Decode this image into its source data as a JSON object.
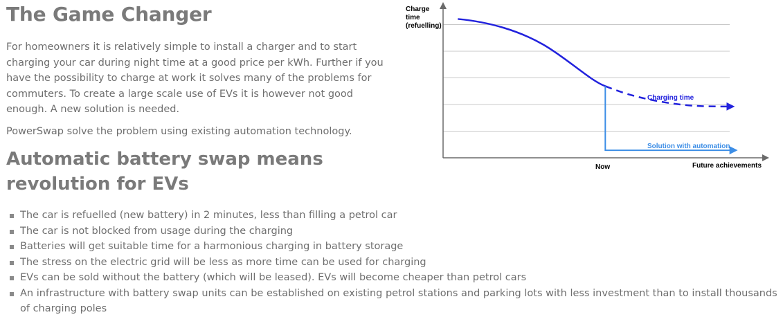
{
  "section1": {
    "title": "The Game Changer",
    "paragraphs": [
      "For homeowners it is relatively simple to install a charger and to start charging your car during night time at a good price per kWh. Further if you have the possibility to charge at work it solves many of the problems for commuters. To create a large scale use of EVs it is however not good enough. A new solution is needed.",
      "PowerSwap solve the problem using existing automation technology."
    ]
  },
  "section2": {
    "title": "Automatic battery swap means revolution for EVs",
    "items": [
      "The car is refuelled (new battery) in 2 minutes, less than filling a petrol car",
      "The car is not blocked from usage during the charging",
      "Batteries will get suitable time for a harmonious charging in battery storage",
      "The stress on the electric grid will be less as more time can be used for charging",
      "EVs can be sold without the battery (which will be leased). EVs will become cheaper than petrol cars",
      "An infrastructure with battery swap units can be established on existing petrol stations and parking lots with less investment than to install thousands of charging poles"
    ]
  },
  "chart_data": {
    "type": "line",
    "title": "",
    "ylabel_lines": [
      "Charge",
      "time",
      "(refuelling)"
    ],
    "xlabel": "Future achievements",
    "x_marker_label": "Now",
    "x_domain": [
      0,
      10
    ],
    "y_domain": [
      0,
      10
    ],
    "grid": true,
    "gridline_count": 5,
    "series": [
      {
        "name": "Charging time",
        "color": "#2222dd",
        "segments": [
          {
            "style": "solid",
            "points": [
              [
                0.5,
                9.2
              ],
              [
                1.5,
                8.9
              ],
              [
                2.5,
                8.0
              ],
              [
                4.0,
                6.2
              ],
              [
                5.5,
                4.5
              ],
              [
                6.7,
                4.9
              ],
              [
                7.5,
                3.8
              ]
            ]
          },
          {
            "style": "dashed",
            "points": [
              [
                5.5,
                4.5
              ],
              [
                6.7,
                3.9
              ],
              [
                7.5,
                3.6
              ],
              [
                9.0,
                3.5
              ],
              [
                9.6,
                3.4
              ]
            ]
          }
        ]
      },
      {
        "name": "Solution with automation",
        "color": "#3d8ee6",
        "segments": [
          {
            "style": "solid",
            "points": [
              [
                5.5,
                4.5
              ],
              [
                5.5,
                0.5
              ],
              [
                10.0,
                0.5
              ]
            ]
          }
        ]
      }
    ]
  }
}
